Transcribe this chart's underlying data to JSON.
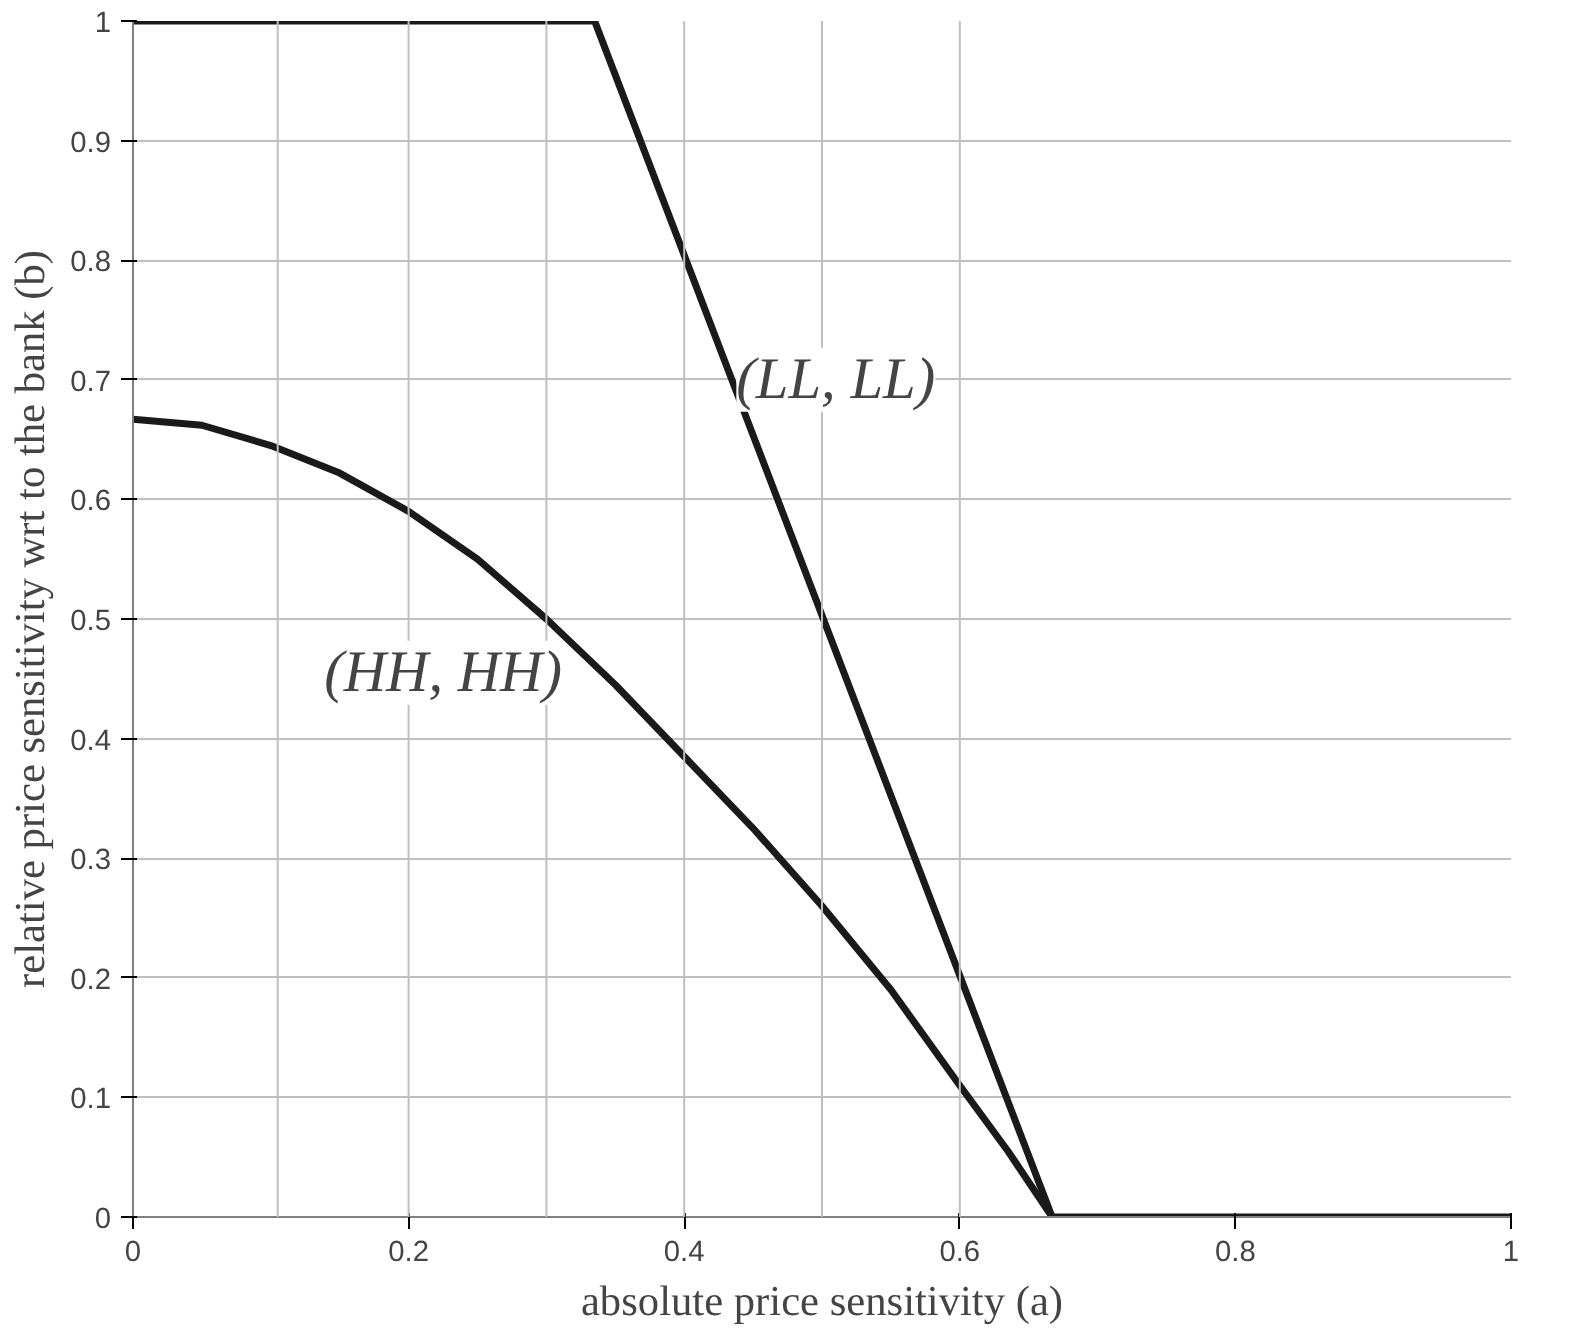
{
  "chart_data": {
    "type": "line",
    "xlabel": "absolute price sensitivity (a)",
    "ylabel": "relative price sensitivity wrt to the bank (b)",
    "xlim": [
      0,
      1
    ],
    "ylim": [
      0,
      1
    ],
    "xticks": [
      0,
      0.2,
      0.4,
      0.6,
      0.8,
      1
    ],
    "yticks": [
      0,
      0.1,
      0.2,
      0.3,
      0.4,
      0.5,
      0.6,
      0.7,
      0.8,
      0.9,
      1
    ],
    "grid": "y",
    "series": [
      {
        "color": "#1a1a1a",
        "x": [
          0,
          0.335,
          0.667,
          1
        ],
        "values": [
          1,
          1,
          0,
          0
        ]
      },
      {
        "color": "#1a1a1a",
        "x": [
          0,
          0.05,
          0.1,
          0.15,
          0.2,
          0.25,
          0.3,
          0.35,
          0.4,
          0.45,
          0.5,
          0.55,
          0.6,
          0.635,
          0.667
        ],
        "values": [
          0.667,
          0.662,
          0.645,
          0.622,
          0.59,
          0.55,
          0.5,
          0.445,
          0.385,
          0.325,
          0.26,
          0.19,
          0.11,
          0.055,
          0
        ]
      }
    ],
    "ref_lines": [
      {
        "axis": "x",
        "value": 0.105,
        "color": "#bfbfbf"
      },
      {
        "axis": "x",
        "value": 0.2,
        "color": "#bfbfbf"
      },
      {
        "axis": "x",
        "value": 0.3,
        "color": "#bfbfbf"
      },
      {
        "axis": "x",
        "value": 0.4,
        "color": "#bfbfbf"
      },
      {
        "axis": "x",
        "value": 0.5,
        "color": "#bfbfbf"
      },
      {
        "axis": "x",
        "value": 0.6,
        "color": "#bfbfbf"
      }
    ],
    "annotations": [
      "(HH, HH)",
      "(LL, LL)"
    ]
  }
}
